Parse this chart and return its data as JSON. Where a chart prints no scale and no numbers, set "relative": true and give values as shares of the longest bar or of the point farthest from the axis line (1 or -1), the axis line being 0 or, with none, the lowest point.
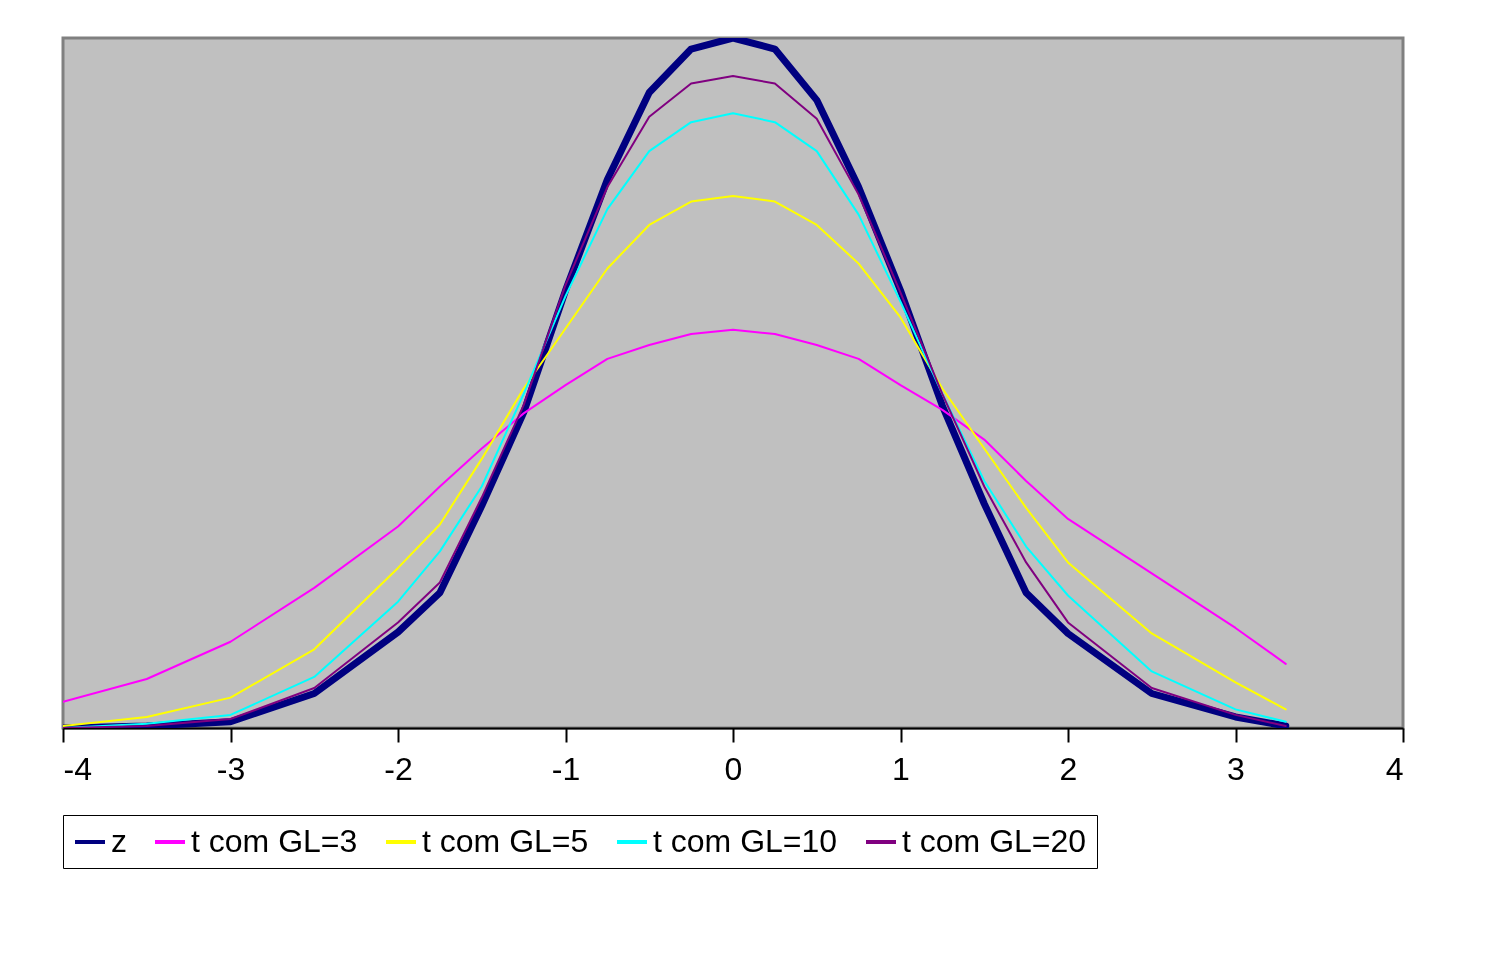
{
  "chart_data": {
    "type": "line",
    "relative": true,
    "x": [
      -4,
      -3.5,
      -3,
      -2.5,
      -2,
      -1.75,
      -1.5,
      -1.25,
      -1,
      -0.75,
      -0.5,
      -0.25,
      0,
      0.25,
      0.5,
      0.75,
      1,
      1.25,
      1.5,
      1.75,
      2,
      2.5,
      3,
      3.3
    ],
    "xlim": [
      -4,
      4
    ],
    "xticks": [
      -4,
      -3,
      -2,
      -1,
      0,
      1,
      2,
      3,
      4
    ],
    "grid": false,
    "legend": "bottom",
    "marker": "none",
    "line_style": "solid",
    "series": [
      {
        "name": "z",
        "color": "#000080",
        "values": [
          0,
          0.003,
          0.009,
          0.05,
          0.139,
          0.196,
          0.322,
          0.457,
          0.634,
          0.795,
          0.921,
          0.984,
          1,
          0.984,
          0.91,
          0.784,
          0.634,
          0.467,
          0.325,
          0.196,
          0.137,
          0.05,
          0.016,
          0.003
        ]
      },
      {
        "name": "t com GL=3",
        "color": "#ff00ff",
        "values": [
          0.038,
          0.071,
          0.125,
          0.203,
          0.292,
          0.35,
          0.405,
          0.456,
          0.497,
          0.535,
          0.555,
          0.571,
          0.577,
          0.571,
          0.555,
          0.535,
          0.497,
          0.461,
          0.418,
          0.358,
          0.303,
          0.224,
          0.145,
          0.093
        ]
      },
      {
        "name": "t com GL=5",
        "color": "#ffff00",
        "values": [
          0.003,
          0.016,
          0.044,
          0.114,
          0.232,
          0.295,
          0.39,
          0.492,
          0.579,
          0.666,
          0.729,
          0.763,
          0.771,
          0.763,
          0.729,
          0.673,
          0.595,
          0.492,
          0.405,
          0.319,
          0.24,
          0.137,
          0.066,
          0.027
        ]
      },
      {
        "name": "t com GL=10",
        "color": "#00ffff",
        "values": [
          0,
          0.006,
          0.019,
          0.074,
          0.183,
          0.256,
          0.35,
          0.484,
          0.626,
          0.752,
          0.836,
          0.878,
          0.891,
          0.878,
          0.836,
          0.744,
          0.618,
          0.484,
          0.358,
          0.263,
          0.192,
          0.082,
          0.027,
          0.009
        ]
      },
      {
        "name": "t com GL=20",
        "color": "#800080",
        "values": [
          0,
          0.003,
          0.013,
          0.058,
          0.153,
          0.211,
          0.334,
          0.468,
          0.642,
          0.784,
          0.886,
          0.934,
          0.945,
          0.934,
          0.883,
          0.773,
          0.631,
          0.484,
          0.35,
          0.24,
          0.153,
          0.058,
          0.019,
          0.003
        ]
      }
    ]
  }
}
